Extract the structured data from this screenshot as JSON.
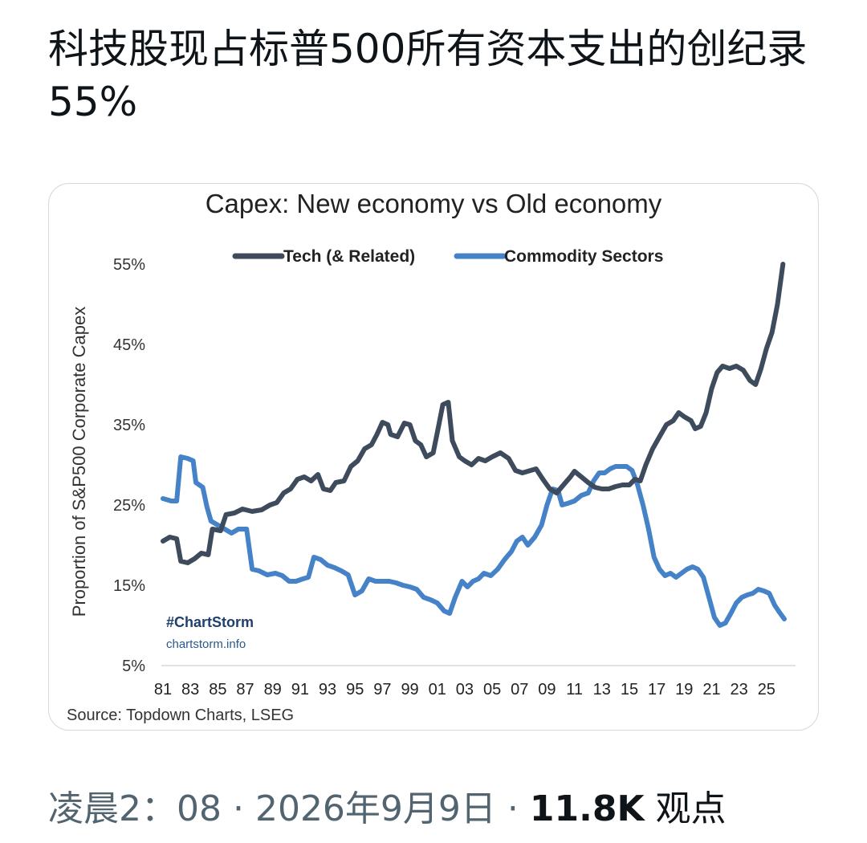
{
  "post": {
    "text": "科技股现占标普500所有资本支出的创纪录55%"
  },
  "meta": {
    "time": "凌晨2：08",
    "separator1": " · ",
    "date": "2026年9月9日",
    "separator2": " · ",
    "views_count": "11.8K",
    "views_label": " 观点"
  },
  "chart_data": {
    "type": "line",
    "title": "Capex: New economy vs Old economy",
    "ylabel": "Proportion of S&P500 Corporate Capex",
    "xlabel": "",
    "ylim": [
      5,
      55
    ],
    "xlim": [
      1981,
      2027
    ],
    "y_ticks": [
      "5%",
      "15%",
      "25%",
      "35%",
      "45%",
      "55%"
    ],
    "x_ticks": [
      "81",
      "83",
      "85",
      "87",
      "89",
      "91",
      "93",
      "95",
      "97",
      "99",
      "01",
      "03",
      "05",
      "07",
      "09",
      "11",
      "13",
      "15",
      "17",
      "19",
      "21",
      "23",
      "25"
    ],
    "legend_position": "top-center",
    "grid": false,
    "watermark": "#ChartStorm",
    "watermark_url": "chartstorm.info",
    "source": "Source: Topdown Charts, LSEG",
    "series": [
      {
        "name": "Tech (& Related)",
        "color": "#3d4b5c",
        "points": [
          [
            1981.0,
            20.5
          ],
          [
            1981.5,
            21.0
          ],
          [
            1982.0,
            20.8
          ],
          [
            1982.3,
            18.0
          ],
          [
            1982.8,
            17.8
          ],
          [
            1983.3,
            18.3
          ],
          [
            1983.8,
            19.0
          ],
          [
            1984.3,
            18.8
          ],
          [
            1984.6,
            22.0
          ],
          [
            1985.2,
            21.8
          ],
          [
            1985.6,
            23.8
          ],
          [
            1986.2,
            24.0
          ],
          [
            1986.8,
            24.5
          ],
          [
            1987.5,
            24.2
          ],
          [
            1988.2,
            24.4
          ],
          [
            1988.8,
            25.0
          ],
          [
            1989.3,
            25.3
          ],
          [
            1989.8,
            26.5
          ],
          [
            1990.3,
            27.0
          ],
          [
            1990.8,
            28.2
          ],
          [
            1991.3,
            28.5
          ],
          [
            1991.8,
            28.0
          ],
          [
            1992.3,
            28.8
          ],
          [
            1992.7,
            27.0
          ],
          [
            1993.2,
            26.8
          ],
          [
            1993.6,
            27.8
          ],
          [
            1994.2,
            28.0
          ],
          [
            1994.7,
            29.8
          ],
          [
            1995.2,
            30.5
          ],
          [
            1995.7,
            32.0
          ],
          [
            1996.2,
            32.5
          ],
          [
            1996.6,
            33.8
          ],
          [
            1997.0,
            35.3
          ],
          [
            1997.4,
            35.0
          ],
          [
            1997.6,
            33.8
          ],
          [
            1998.1,
            33.5
          ],
          [
            1998.6,
            35.2
          ],
          [
            1999.0,
            35.0
          ],
          [
            1999.4,
            33.0
          ],
          [
            1999.8,
            32.5
          ],
          [
            2000.2,
            31.0
          ],
          [
            2000.7,
            31.5
          ],
          [
            2001.0,
            34.0
          ],
          [
            2001.4,
            37.5
          ],
          [
            2001.8,
            37.8
          ],
          [
            2002.1,
            33.0
          ],
          [
            2002.6,
            31.0
          ],
          [
            2003.0,
            30.5
          ],
          [
            2003.5,
            30.0
          ],
          [
            2004.0,
            30.8
          ],
          [
            2004.5,
            30.5
          ],
          [
            2005.0,
            31.0
          ],
          [
            2005.6,
            31.5
          ],
          [
            2006.2,
            30.8
          ],
          [
            2006.7,
            29.3
          ],
          [
            2007.2,
            29.0
          ],
          [
            2007.8,
            29.3
          ],
          [
            2008.2,
            29.5
          ],
          [
            2008.7,
            28.2
          ],
          [
            2009.2,
            27.0
          ],
          [
            2009.7,
            26.5
          ],
          [
            2010.2,
            27.5
          ],
          [
            2010.7,
            28.5
          ],
          [
            2011.0,
            29.2
          ],
          [
            2011.5,
            28.5
          ],
          [
            2012.0,
            27.8
          ],
          [
            2012.5,
            27.2
          ],
          [
            2013.0,
            27.0
          ],
          [
            2013.5,
            27.0
          ],
          [
            2014.0,
            27.3
          ],
          [
            2014.5,
            27.5
          ],
          [
            2015.0,
            27.5
          ],
          [
            2015.4,
            28.2
          ],
          [
            2015.8,
            28.0
          ],
          [
            2016.2,
            30.0
          ],
          [
            2016.7,
            32.0
          ],
          [
            2017.2,
            33.5
          ],
          [
            2017.7,
            35.0
          ],
          [
            2018.2,
            35.5
          ],
          [
            2018.6,
            36.5
          ],
          [
            2019.0,
            36.0
          ],
          [
            2019.5,
            35.5
          ],
          [
            2019.8,
            34.5
          ],
          [
            2020.2,
            34.8
          ],
          [
            2020.6,
            36.5
          ],
          [
            2021.0,
            39.5
          ],
          [
            2021.4,
            41.5
          ],
          [
            2021.8,
            42.3
          ],
          [
            2022.3,
            42.0
          ],
          [
            2022.8,
            42.3
          ],
          [
            2023.3,
            41.8
          ],
          [
            2023.8,
            40.5
          ],
          [
            2024.2,
            40.0
          ],
          [
            2024.6,
            42.0
          ],
          [
            2025.0,
            44.5
          ],
          [
            2025.4,
            46.5
          ],
          [
            2025.8,
            50.0
          ],
          [
            2026.2,
            55.0
          ]
        ]
      },
      {
        "name": "Commodity Sectors",
        "color": "#4682c8",
        "points": [
          [
            1981.0,
            25.8
          ],
          [
            1981.6,
            25.5
          ],
          [
            1982.0,
            25.5
          ],
          [
            1982.3,
            31.0
          ],
          [
            1982.8,
            30.8
          ],
          [
            1983.2,
            30.5
          ],
          [
            1983.4,
            27.8
          ],
          [
            1983.9,
            27.2
          ],
          [
            1984.2,
            24.8
          ],
          [
            1984.5,
            23.0
          ],
          [
            1985.0,
            22.5
          ],
          [
            1985.5,
            22.0
          ],
          [
            1986.0,
            21.5
          ],
          [
            1986.5,
            22.0
          ],
          [
            1987.1,
            22.0
          ],
          [
            1987.5,
            17.0
          ],
          [
            1988.0,
            16.8
          ],
          [
            1988.6,
            16.3
          ],
          [
            1989.2,
            16.5
          ],
          [
            1989.7,
            16.2
          ],
          [
            1990.2,
            15.5
          ],
          [
            1990.7,
            15.5
          ],
          [
            1991.2,
            15.8
          ],
          [
            1991.6,
            16.0
          ],
          [
            1992.0,
            18.5
          ],
          [
            1992.5,
            18.2
          ],
          [
            1993.0,
            17.5
          ],
          [
            1993.5,
            17.2
          ],
          [
            1994.0,
            16.8
          ],
          [
            1994.5,
            16.3
          ],
          [
            1995.0,
            13.8
          ],
          [
            1995.5,
            14.3
          ],
          [
            1996.0,
            15.8
          ],
          [
            1996.5,
            15.5
          ],
          [
            1997.0,
            15.5
          ],
          [
            1997.5,
            15.5
          ],
          [
            1998.0,
            15.3
          ],
          [
            1998.5,
            15.0
          ],
          [
            1999.0,
            14.8
          ],
          [
            1999.5,
            14.5
          ],
          [
            2000.0,
            13.5
          ],
          [
            2000.5,
            13.2
          ],
          [
            2001.0,
            12.8
          ],
          [
            2001.5,
            11.8
          ],
          [
            2001.9,
            11.5
          ],
          [
            2002.3,
            13.5
          ],
          [
            2002.8,
            15.5
          ],
          [
            2003.2,
            14.8
          ],
          [
            2003.6,
            15.5
          ],
          [
            2004.0,
            15.8
          ],
          [
            2004.4,
            16.5
          ],
          [
            2004.9,
            16.2
          ],
          [
            2005.4,
            17.0
          ],
          [
            2005.9,
            18.2
          ],
          [
            2006.4,
            19.2
          ],
          [
            2006.8,
            20.5
          ],
          [
            2007.2,
            21.0
          ],
          [
            2007.6,
            20.0
          ],
          [
            2008.1,
            21.0
          ],
          [
            2008.6,
            22.5
          ],
          [
            2009.0,
            25.0
          ],
          [
            2009.4,
            27.0
          ],
          [
            2009.8,
            26.8
          ],
          [
            2010.1,
            25.0
          ],
          [
            2010.5,
            25.2
          ],
          [
            2011.0,
            25.5
          ],
          [
            2011.5,
            26.2
          ],
          [
            2012.0,
            26.5
          ],
          [
            2012.4,
            28.0
          ],
          [
            2012.8,
            29.0
          ],
          [
            2013.2,
            29.0
          ],
          [
            2013.6,
            29.5
          ],
          [
            2014.0,
            29.8
          ],
          [
            2014.4,
            29.8
          ],
          [
            2014.8,
            29.8
          ],
          [
            2015.2,
            29.3
          ],
          [
            2015.6,
            27.5
          ],
          [
            2016.0,
            25.0
          ],
          [
            2016.4,
            22.0
          ],
          [
            2016.8,
            18.5
          ],
          [
            2017.2,
            17.0
          ],
          [
            2017.6,
            16.2
          ],
          [
            2018.0,
            16.5
          ],
          [
            2018.4,
            16.0
          ],
          [
            2018.8,
            16.5
          ],
          [
            2019.2,
            17.0
          ],
          [
            2019.6,
            17.3
          ],
          [
            2020.0,
            17.0
          ],
          [
            2020.4,
            16.0
          ],
          [
            2020.8,
            13.5
          ],
          [
            2021.2,
            11.0
          ],
          [
            2021.6,
            10.0
          ],
          [
            2022.0,
            10.3
          ],
          [
            2022.4,
            11.5
          ],
          [
            2022.8,
            12.8
          ],
          [
            2023.2,
            13.5
          ],
          [
            2023.6,
            13.8
          ],
          [
            2024.0,
            14.0
          ],
          [
            2024.4,
            14.5
          ],
          [
            2024.8,
            14.3
          ],
          [
            2025.2,
            14.0
          ],
          [
            2025.6,
            12.5
          ],
          [
            2026.0,
            11.5
          ],
          [
            2026.3,
            10.8
          ]
        ]
      }
    ]
  }
}
